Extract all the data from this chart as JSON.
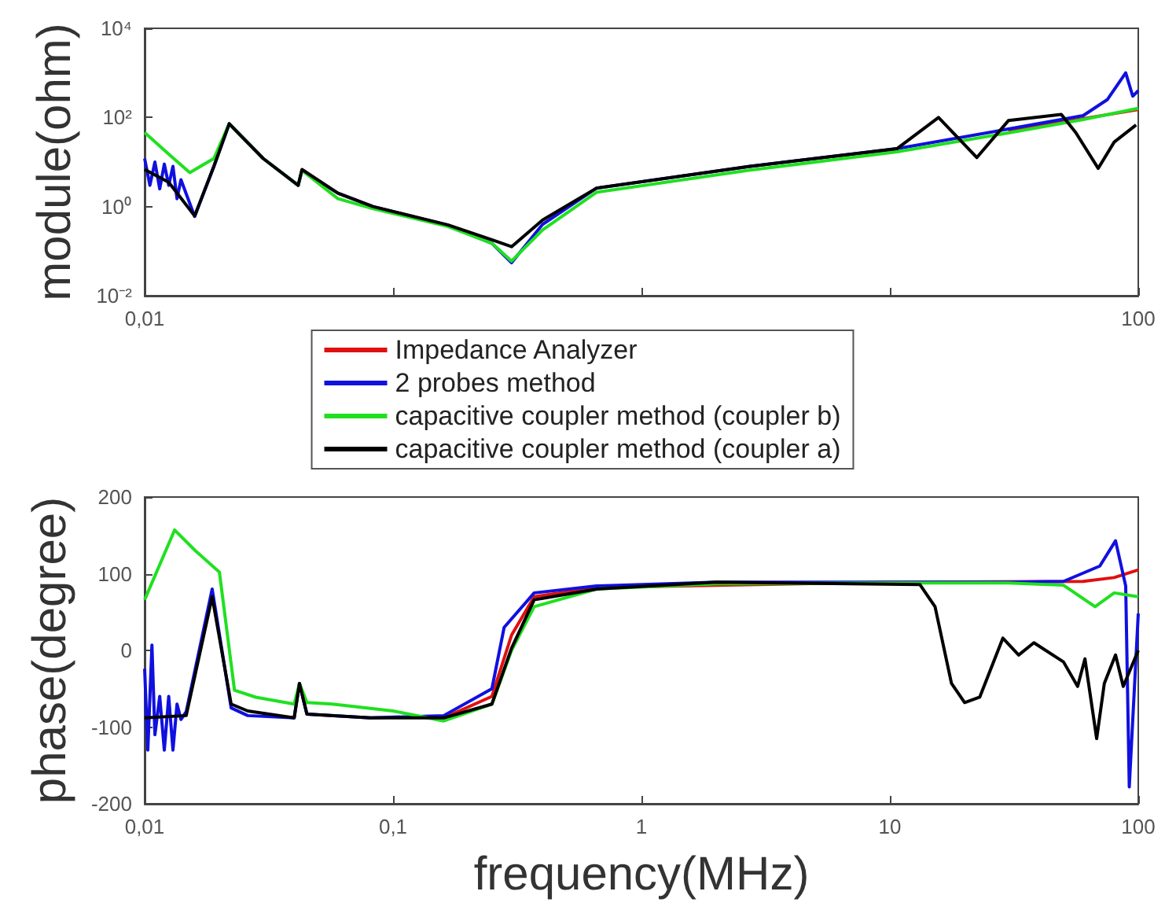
{
  "chart_data": [
    {
      "type": "line",
      "ylabel": "module(ohm)",
      "log": "xy",
      "legend": "bottom",
      "xlim": [
        0.01,
        100
      ],
      "xticks": [
        {
          "value": 0.01,
          "label": "0,01"
        },
        {
          "value": 0.1,
          "label": null
        },
        {
          "value": 1,
          "label": null
        },
        {
          "value": 10,
          "label": null
        },
        100
      ],
      "ylim": [
        0.01,
        10000
      ],
      "yticks": [
        {
          "value": 0.01,
          "label": "10⁻²"
        },
        {
          "value": 1,
          "label": "10⁰"
        },
        {
          "value": 100,
          "label": "10²"
        },
        {
          "value": 10000,
          "label": "10⁴"
        }
      ],
      "series": [
        {
          "name": "Impedance Analyzer",
          "color": "#e01010",
          "x": [
            30,
            100
          ],
          "values": [
            50,
            150
          ]
        },
        {
          "name": "2 probes method",
          "color": "#1010e0",
          "x": [
            0.01,
            0.0105,
            0.011,
            0.0115,
            0.012,
            0.0125,
            0.013,
            0.0135,
            0.014,
            0.0159,
            0.019,
            0.0219,
            0.03,
            0.0415,
            0.043,
            0.06,
            0.083,
            0.166,
            0.25,
            0.3,
            0.4,
            0.66,
            2.7,
            10.7,
            30,
            60,
            75,
            89,
            95,
            100
          ],
          "values": [
            12,
            3,
            10,
            2.5,
            9,
            3,
            8,
            1.5,
            4,
            0.6,
            8,
            72,
            12,
            3.0,
            6.5,
            2,
            1.0,
            0.38,
            0.15,
            0.055,
            0.4,
            2.6,
            7.9,
            20,
            55,
            110,
            250,
            1000,
            300,
            400
          ]
        },
        {
          "name": "capacitive coupler method (coupler b)",
          "color": "#20e020",
          "x": [
            0.01,
            0.0125,
            0.0152,
            0.019,
            0.0219,
            0.03,
            0.0415,
            0.043,
            0.06,
            0.083,
            0.166,
            0.25,
            0.3,
            0.4,
            0.66,
            2.7,
            10.7,
            30,
            60,
            100
          ],
          "values": [
            46,
            15,
            5.8,
            12,
            72,
            12,
            3.0,
            6.5,
            1.5,
            0.9,
            0.36,
            0.15,
            0.06,
            0.3,
            2.1,
            6.5,
            17,
            45,
            90,
            160
          ]
        },
        {
          "name": "capacitive coupler method (coupler a)",
          "color": "#000000",
          "x": [
            0.01,
            0.0125,
            0.0159,
            0.019,
            0.0219,
            0.03,
            0.0415,
            0.043,
            0.06,
            0.083,
            0.166,
            0.25,
            0.3,
            0.4,
            0.66,
            2.7,
            10.7,
            15.7,
            22.4,
            30,
            49,
            56,
            69,
            80,
            98
          ],
          "values": [
            6.8,
            3.5,
            0.62,
            8,
            72,
            12,
            3.0,
            6.8,
            2,
            1.0,
            0.39,
            0.18,
            0.126,
            0.5,
            2.6,
            7.9,
            20,
            100,
            12.6,
            85,
            117,
            46,
            7.2,
            28,
            68
          ]
        }
      ]
    },
    {
      "type": "line",
      "ylabel": "phase(degree)",
      "xlabel": "frequency(MHz)",
      "log": "x",
      "xlim": [
        0.01,
        100
      ],
      "xticks": [
        {
          "value": 0.01,
          "label": "0,01"
        },
        {
          "value": 0.1,
          "label": "0,1"
        },
        1,
        10,
        100
      ],
      "ylim": [
        -200,
        200
      ],
      "yticks": [
        -200,
        -100,
        0,
        100,
        200
      ],
      "series": [
        {
          "color": "#e01010",
          "x": [
            0.16,
            0.25,
            0.3,
            0.37,
            0.66,
            10,
            60,
            80,
            100
          ],
          "values": [
            -88,
            -60,
            20,
            70,
            82,
            89,
            90,
            95,
            105
          ]
        },
        {
          "color": "#1010e0",
          "x": [
            0.01,
            0.0103,
            0.0107,
            0.011,
            0.0115,
            0.012,
            0.0125,
            0.013,
            0.0135,
            0.014,
            0.0147,
            0.0187,
            0.0223,
            0.026,
            0.04,
            0.042,
            0.045,
            0.081,
            0.16,
            0.25,
            0.28,
            0.37,
            0.66,
            2,
            10,
            30,
            50,
            70,
            81,
            89,
            92,
            100
          ],
          "values": [
            -24,
            -130,
            7,
            -110,
            -60,
            -130,
            -60,
            -130,
            -70,
            -90,
            -80,
            80,
            -75,
            -85,
            -88,
            -43,
            -83,
            -88,
            -85,
            -50,
            30,
            75,
            84,
            89,
            89,
            89,
            90,
            110,
            143,
            84,
            -178,
            48
          ]
        },
        {
          "color": "#20e020",
          "x": [
            0.01,
            0.0132,
            0.016,
            0.02,
            0.023,
            0.028,
            0.04,
            0.042,
            0.045,
            0.057,
            0.1,
            0.16,
            0.25,
            0.3,
            0.37,
            0.66,
            2,
            10,
            30,
            50,
            67,
            80,
            100
          ],
          "values": [
            66,
            157,
            130,
            102,
            -52,
            -61,
            -70,
            -43,
            -68,
            -70,
            -79,
            -92,
            -70,
            0,
            57,
            80,
            87,
            88,
            88,
            85,
            57,
            75,
            70
          ]
        },
        {
          "color": "#000000",
          "x": [
            0.01,
            0.0147,
            0.0187,
            0.0223,
            0.026,
            0.04,
            0.042,
            0.045,
            0.081,
            0.16,
            0.25,
            0.3,
            0.37,
            0.66,
            2,
            13.2,
            15.2,
            17.7,
            20,
            23,
            28.5,
            33,
            38,
            50,
            57,
            61,
            68,
            73,
            81,
            87,
            100
          ],
          "values": [
            -88,
            -85,
            70,
            -70,
            -79,
            -88,
            -43,
            -83,
            -88,
            -88,
            -70,
            3,
            66,
            80,
            89,
            86,
            57,
            -43,
            -68,
            -61,
            16,
            -6,
            10,
            -15,
            -47,
            -11,
            -115,
            -43,
            -6,
            -47,
            0
          ]
        }
      ]
    }
  ]
}
